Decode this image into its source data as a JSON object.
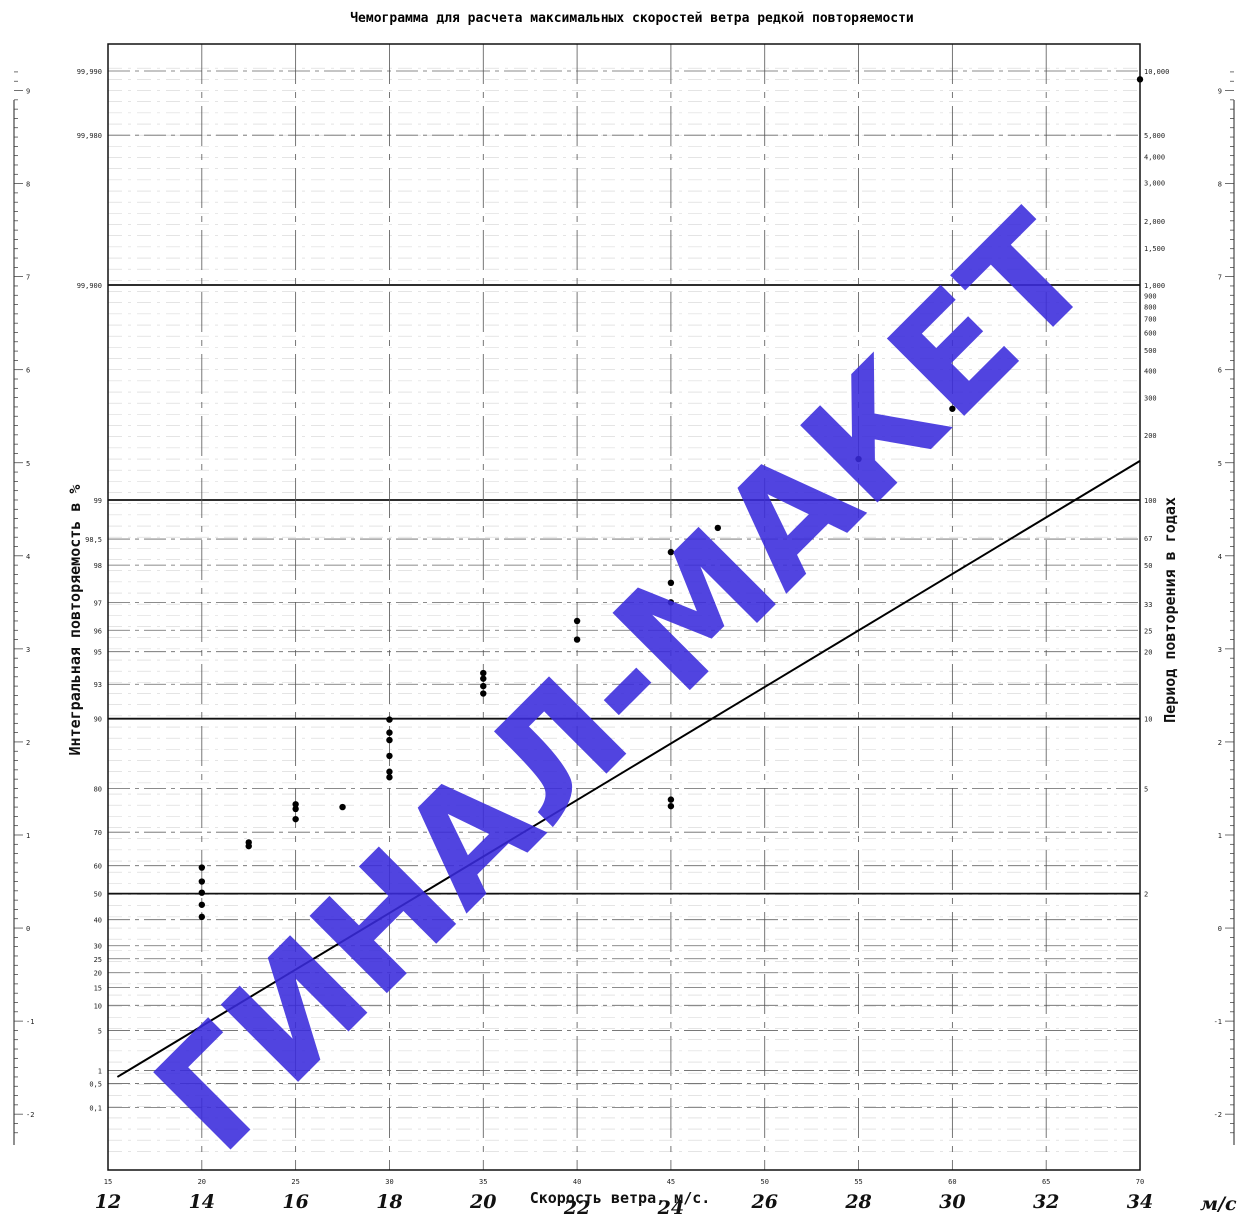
{
  "chart_data": {
    "type": "scatter",
    "title": "Чемограмма для расчета максимальных скоростей ветра редкой повторяемости",
    "xlabel": "Скорость ветра, м/с.",
    "ylabel_left": "Интегральная повторяемость в %",
    "ylabel_right": "Период повторения в годах",
    "x_printed_ticks": [
      "15",
      "20",
      "25",
      "30",
      "35",
      "40",
      "45",
      "50",
      "55",
      "60",
      "65",
      "70"
    ],
    "x_handwritten_ticks": [
      "12",
      "14",
      "16",
      "18",
      "20",
      "22",
      "24",
      "26",
      "28",
      "30",
      "32",
      "34"
    ],
    "x_unit_fragment": "м/с",
    "left_prob_ticks": [
      "99,990",
      "99,980",
      "99,900",
      "99",
      "98,5",
      "98",
      "97",
      "96",
      "95",
      "93",
      "90",
      "80",
      "70",
      "60",
      "50",
      "40",
      "30",
      "25",
      "20",
      "15",
      "10",
      "5",
      "1",
      "0,5",
      "0,1"
    ],
    "right_period_ticks": [
      "10,000",
      "5,000",
      "4,000",
      "3,000",
      "2,000",
      "1,500",
      "1,000",
      "900",
      "800",
      "700",
      "600",
      "500",
      "400",
      "300",
      "200",
      "100",
      "67",
      "50",
      "33",
      "25",
      "20",
      "10",
      "5",
      "2"
    ],
    "side_scale_ticks": [
      "9",
      "8",
      "7",
      "6",
      "5",
      "4",
      "3",
      "2",
      "1",
      "0",
      "-1",
      "-2"
    ],
    "xlim": [
      12,
      34
    ],
    "ylim_reduced_variate": [
      -2.6,
      9.5
    ],
    "fit_line": {
      "x": [
        12.2,
        34
      ],
      "y": [
        -1.6,
        5.02
      ]
    },
    "points": [
      {
        "x": 14,
        "y": 0.65
      },
      {
        "x": 14,
        "y": 0.5
      },
      {
        "x": 14,
        "y": 0.38
      },
      {
        "x": 14,
        "y": 0.25
      },
      {
        "x": 14,
        "y": 0.12
      },
      {
        "x": 15,
        "y": 0.92
      },
      {
        "x": 15,
        "y": 0.88
      },
      {
        "x": 16,
        "y": 1.33
      },
      {
        "x": 16,
        "y": 1.28
      },
      {
        "x": 16,
        "y": 1.17
      },
      {
        "x": 17,
        "y": 1.3
      },
      {
        "x": 18,
        "y": 2.24
      },
      {
        "x": 18,
        "y": 2.1
      },
      {
        "x": 18,
        "y": 2.02
      },
      {
        "x": 18,
        "y": 1.85
      },
      {
        "x": 18,
        "y": 1.68
      },
      {
        "x": 18,
        "y": 1.62
      },
      {
        "x": 20,
        "y": 2.74
      },
      {
        "x": 20,
        "y": 2.68
      },
      {
        "x": 20,
        "y": 2.6
      },
      {
        "x": 20,
        "y": 2.52
      },
      {
        "x": 22,
        "y": 3.3
      },
      {
        "x": 22,
        "y": 3.1
      },
      {
        "x": 24,
        "y": 4.04
      },
      {
        "x": 24,
        "y": 3.71
      },
      {
        "x": 24,
        "y": 3.5
      },
      {
        "x": 24,
        "y": 1.38
      },
      {
        "x": 24,
        "y": 1.31
      },
      {
        "x": 25,
        "y": 4.3
      },
      {
        "x": 28,
        "y": 5.04
      },
      {
        "x": 30,
        "y": 5.58
      },
      {
        "x": 34,
        "y": 9.12
      }
    ]
  },
  "watermark": "ГИНАЛ-МАКЕТ"
}
